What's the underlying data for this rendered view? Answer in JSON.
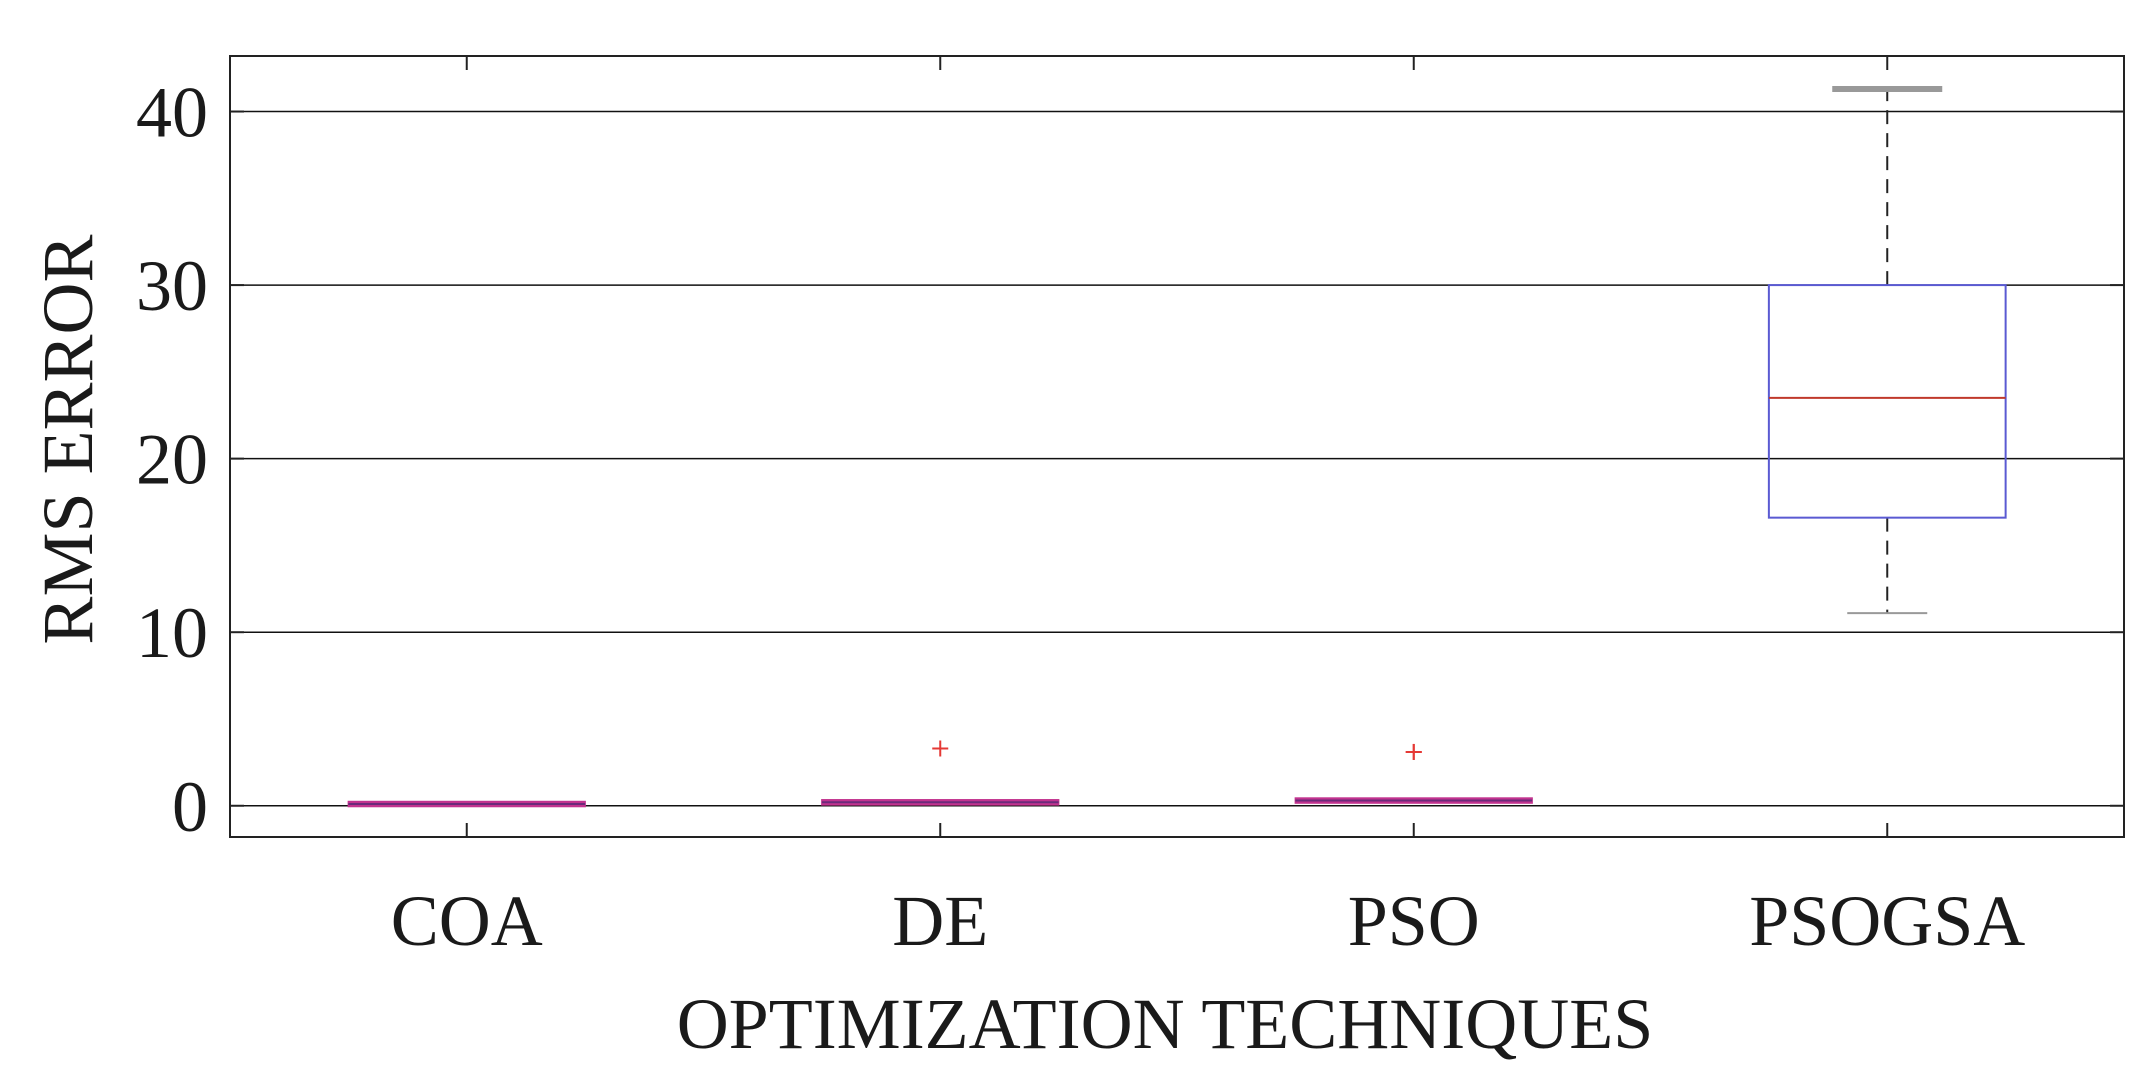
{
  "chart_data": {
    "type": "box",
    "xlabel": "OPTIMIZATION TECHNIQUES",
    "ylabel": "RMS ERROR",
    "categories": [
      "COA",
      "DE",
      "PSO",
      "PSOGSA"
    ],
    "ylim": [
      -1.8,
      43.2
    ],
    "yticks": [
      0,
      10,
      20,
      30,
      40
    ],
    "grid": true,
    "boxes": [
      {
        "category": "COA",
        "whisker_low": 0.05,
        "q1": 0.05,
        "median": 0.1,
        "q3": 0.15,
        "whisker_high": 0.2,
        "outliers": []
      },
      {
        "category": "DE",
        "whisker_low": 0.05,
        "q1": 0.1,
        "median": 0.2,
        "q3": 0.3,
        "whisker_high": 0.35,
        "outliers": [
          3.3
        ]
      },
      {
        "category": "PSO",
        "whisker_low": 0.05,
        "q1": 0.15,
        "median": 0.3,
        "q3": 0.4,
        "whisker_high": 0.5,
        "outliers": [
          3.1,
          3.1
        ]
      },
      {
        "category": "PSOGSA",
        "whisker_low": 11.1,
        "q1": 16.6,
        "median": 23.5,
        "q3": 30.0,
        "whisker_high": 41.3,
        "outliers": []
      }
    ],
    "colors": {
      "box": "#5a5ad2",
      "median": "#c0392b",
      "whisker": "#222222",
      "whisker_cap": "#999999",
      "outlier": "#e53935",
      "grid": "#111111",
      "axis": "#222222",
      "small_box": "#c2338f"
    }
  }
}
